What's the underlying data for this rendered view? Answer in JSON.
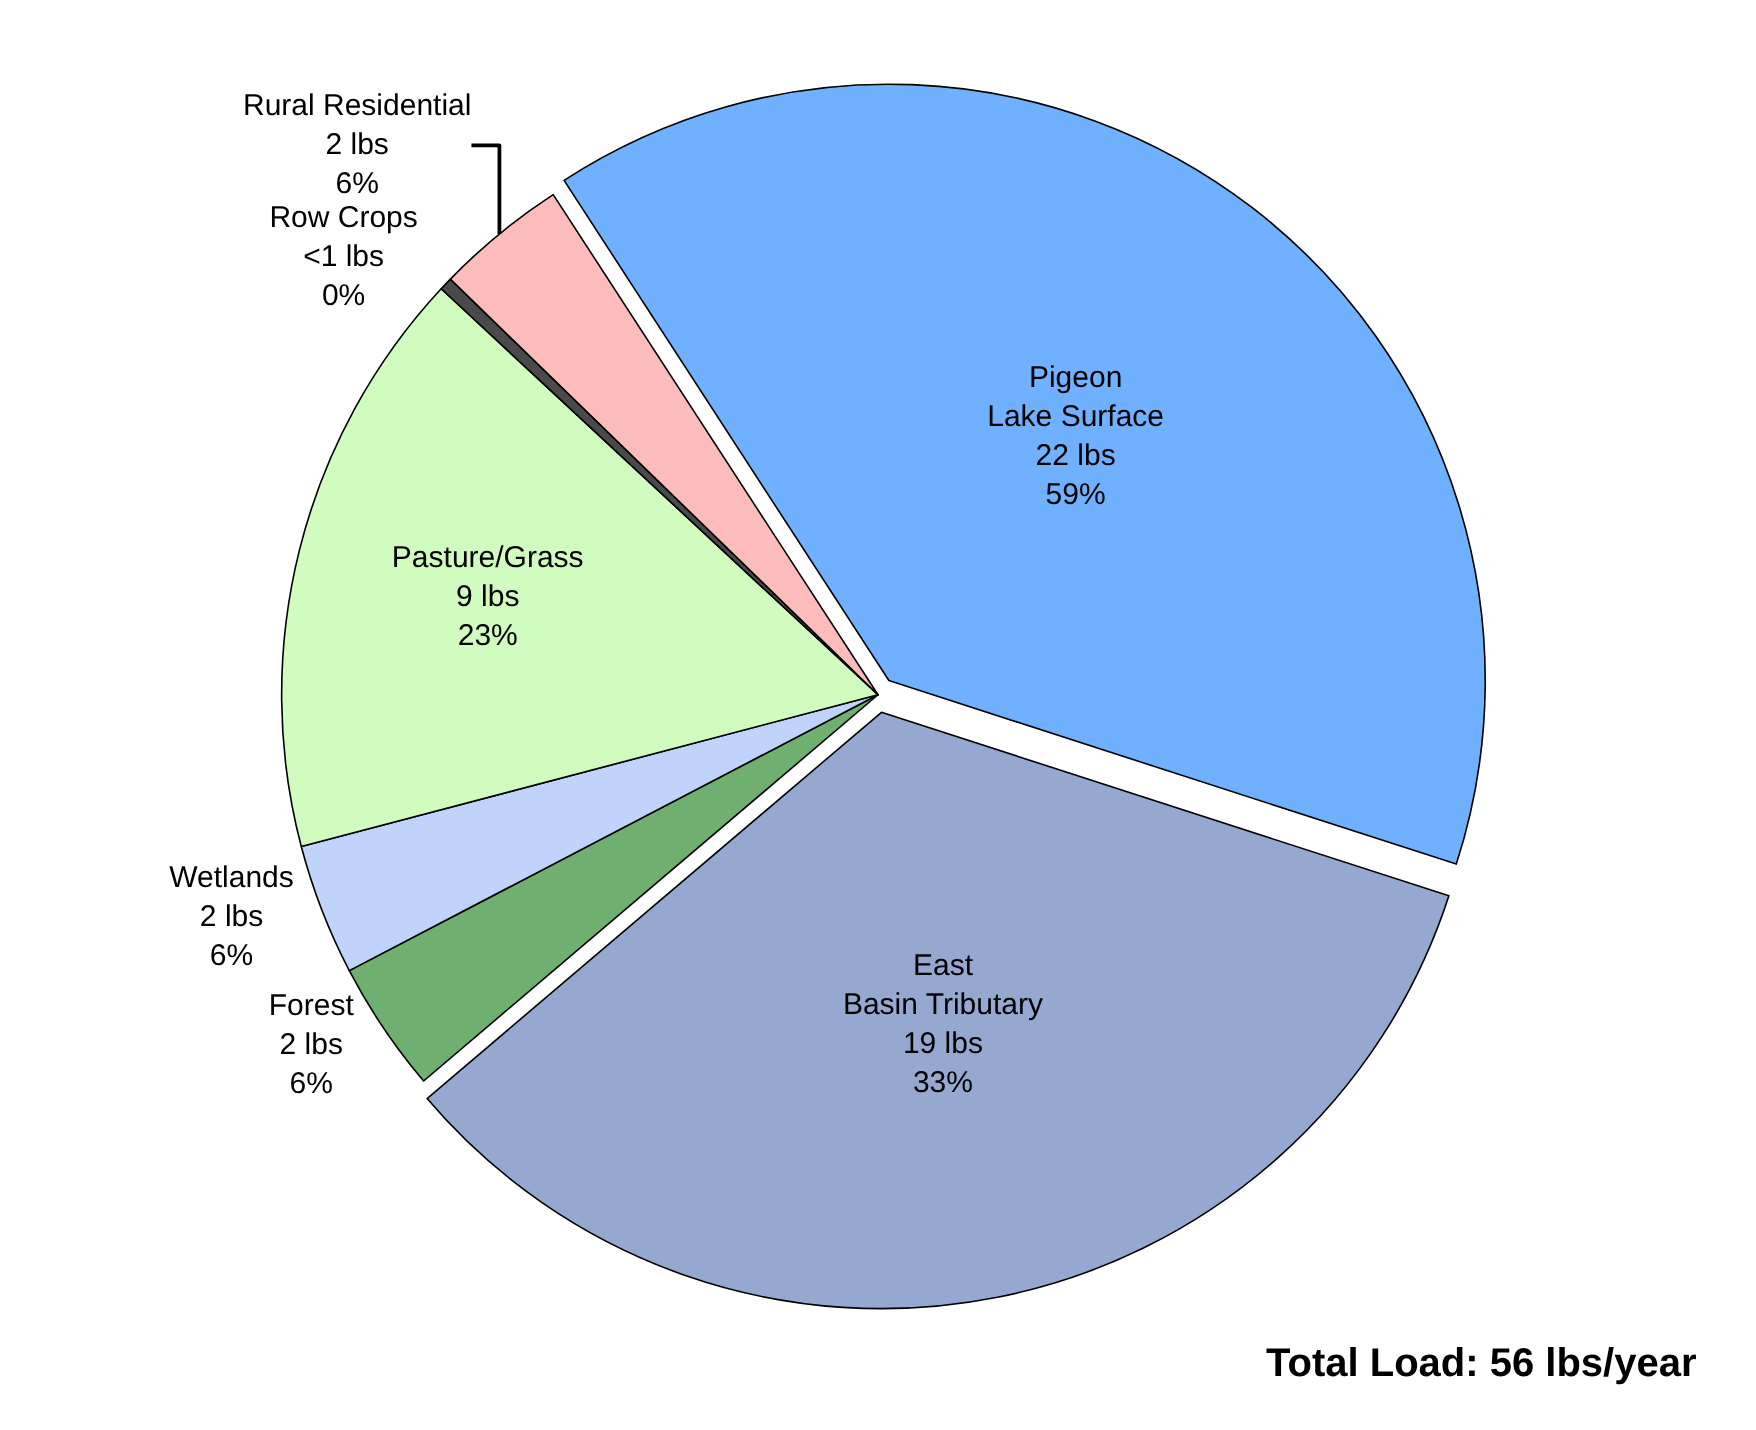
{
  "chart_data": {
    "type": "pie",
    "categories": [
      "Pigeon Lake Surface",
      "East Basin Tributary",
      "Forest",
      "Wetlands",
      "Pasture/Grass",
      "Row Crops",
      "Rural Residential"
    ],
    "values": [
      22,
      19,
      2,
      2,
      9,
      0.2,
      2
    ],
    "value_labels": [
      "22 lbs\n59%",
      "19 lbs\n33%",
      "2 lbs\n6%",
      "2 lbs\n6%",
      "9 lbs\n23%",
      "<1 lbs\n0%",
      "2 lbs\n6%"
    ],
    "colors": [
      "#6fb0ff",
      "#95a9d0",
      "#6faf6f",
      "#bfd3fb",
      "#d0fcbf",
      "#4a4a4a",
      "#fcbcbc"
    ],
    "annotations": [
      "Total Load: 56 lbs/year"
    ],
    "legend": false
  }
}
